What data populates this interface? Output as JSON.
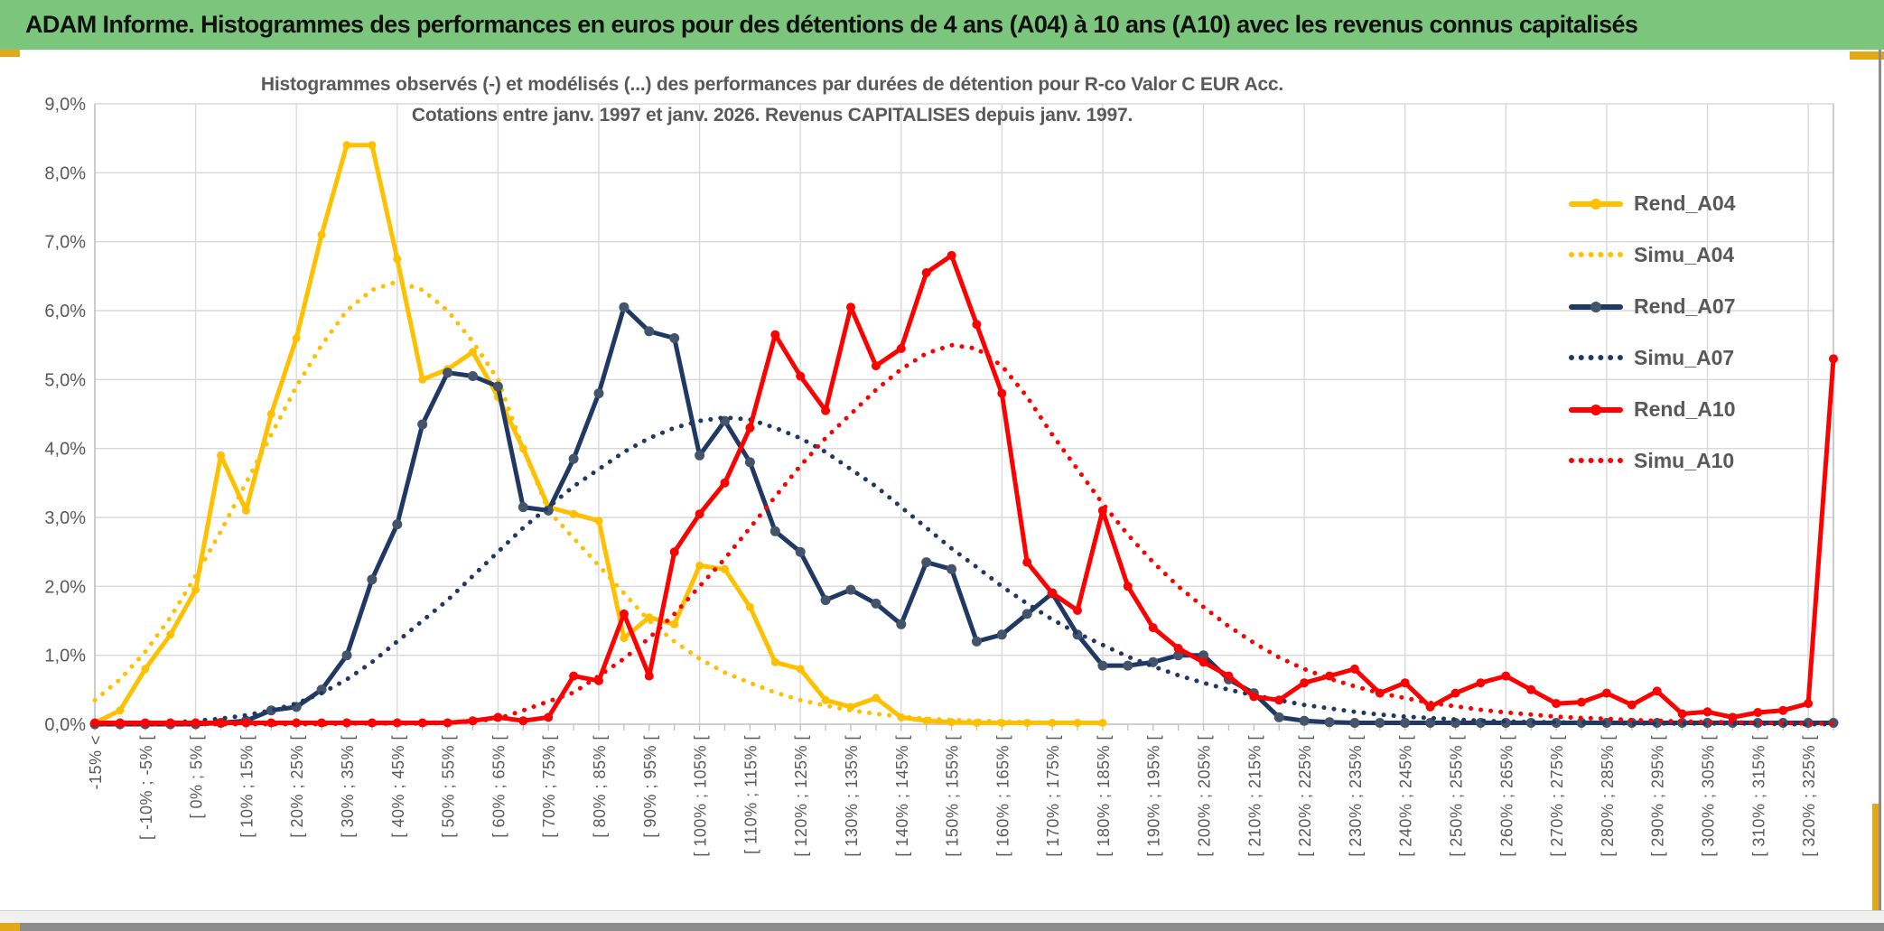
{
  "banner": {
    "title": "ADAM Informe. Histogrammes des performances en euros pour des détentions de 4 ans (A04) à 10 ans (A10) avec les revenus connus capitalisés"
  },
  "colors": {
    "banner_green": "#7CC57C",
    "gold": "#FFC000",
    "navy": "#1F3864",
    "navy_marker": "#44546A",
    "red": "#FF0000",
    "text_gray": "#595959",
    "gridline": "#D9D9D9",
    "axis_line": "#BFBFBF",
    "chrome_gold": "#E3A818",
    "chrome_gray": "#8C8C8C"
  },
  "chart_data": {
    "type": "line",
    "title": "Histogrammes observés (-) et modélisés (...) des performances par durées de détention pour R-co Valor C EUR Acc.",
    "subtitle": "Cotations entre janv. 1997 et janv. 2026. Revenus CAPITALISES depuis janv. 1997.",
    "xlabel": "",
    "ylabel": "",
    "ylim": [
      0,
      9
    ],
    "y_tick_step_pct": 1.0,
    "y_tick_labels": [
      "0,0%",
      "1,0%",
      "2,0%",
      "3,0%",
      "4,0%",
      "5,0%",
      "6,0%",
      "7,0%",
      "8,0%",
      "9,0%"
    ],
    "grid": {
      "horizontal": true,
      "vertical_every_n_bins": 4
    },
    "legend_position": "right-inside",
    "bin_width_pct": 5,
    "categories": [
      "-15% <",
      "",
      "[ -10% ; -5% [",
      "",
      "[ 0% ; 5% [",
      "",
      "[ 10% ; 15% [",
      "",
      "[ 20% ; 25% [",
      "",
      "[ 30% ; 35% [",
      "",
      "[ 40% ; 45% [",
      "",
      "[ 50% ; 55% [",
      "",
      "[ 60% ; 65% [",
      "",
      "[ 70% ; 75% [",
      "",
      "[ 80% ; 85% [",
      "",
      "[ 90% ; 95% [",
      "",
      "[ 100% ; 105% [",
      "",
      "[ 110% ; 115% [",
      "",
      "[ 120% ; 125% [",
      "",
      "[ 130% ; 135% [",
      "",
      "[ 140% ; 145% [",
      "",
      "[ 150% ; 155% [",
      "",
      "[ 160% ; 165% [",
      "",
      "[ 170% ; 175% [",
      "",
      "[ 180% ; 185% [",
      "",
      "[ 190% ; 195% [",
      "",
      "[ 200% ; 205% [",
      "",
      "[ 210% ; 215% [",
      "",
      "[ 220% ; 225% [",
      "",
      "[ 230% ; 235% [",
      "",
      "[ 240% ; 245% [",
      "",
      "[ 250% ; 255% [",
      "",
      "[ 260% ; 265% [",
      "",
      "[ 270% ; 275% [",
      "",
      "[ 280% ; 285% [",
      "",
      "[ 290% ; 295% [",
      "",
      "[ 300% ; 305% [",
      "",
      "[ 310% ; 315% [",
      "",
      "[ 320% ; 325% [",
      ""
    ],
    "series": [
      {
        "name": "Rend_A04",
        "style": "solid",
        "color": "#FFC000",
        "marker_color": "#FFC000",
        "marker_r": 4.5,
        "values": [
          0.02,
          0.2,
          0.8,
          1.3,
          1.95,
          3.9,
          3.1,
          4.5,
          5.6,
          7.1,
          8.4,
          8.4,
          6.75,
          5.0,
          5.15,
          5.4,
          4.75,
          4.0,
          3.15,
          3.05,
          2.95,
          1.25,
          1.55,
          1.45,
          2.3,
          2.25,
          1.7,
          0.9,
          0.8,
          0.35,
          0.25,
          0.38,
          0.1,
          0.05,
          0.03,
          0.02,
          0.02,
          0.02,
          0.02,
          0.02,
          0.02,
          null,
          null,
          null,
          null,
          null,
          null,
          null,
          null,
          null,
          null,
          null,
          null,
          null,
          null,
          null,
          null,
          null,
          null,
          null,
          null,
          null,
          null,
          null,
          null,
          null,
          null,
          null,
          null,
          null
        ]
      },
      {
        "name": "Simu_A04",
        "style": "dotted",
        "color": "#FFC000",
        "values": [
          0.35,
          0.65,
          1.05,
          1.55,
          2.15,
          2.8,
          3.5,
          4.2,
          4.9,
          5.5,
          6.0,
          6.3,
          6.42,
          6.3,
          6.0,
          5.55,
          5.0,
          4.0,
          3.1,
          2.7,
          2.3,
          1.9,
          1.5,
          1.2,
          0.95,
          0.75,
          0.6,
          0.46,
          0.35,
          0.27,
          0.2,
          0.15,
          0.11,
          0.08,
          0.06,
          0.05,
          0.04,
          0.03,
          0.02,
          0.02,
          0.01,
          null,
          null,
          null,
          null,
          null,
          null,
          null,
          null,
          null,
          null,
          null,
          null,
          null,
          null,
          null,
          null,
          null,
          null,
          null,
          null,
          null,
          null,
          null,
          null,
          null,
          null,
          null,
          null,
          null
        ]
      },
      {
        "name": "Rend_A07",
        "style": "solid",
        "color": "#1F3864",
        "marker_color": "#44546A",
        "marker_r": 5.5,
        "values": [
          0,
          0,
          0,
          0,
          0,
          0.02,
          0.05,
          0.2,
          0.25,
          0.5,
          1.0,
          2.1,
          2.9,
          4.35,
          5.1,
          5.05,
          4.9,
          3.15,
          3.1,
          3.85,
          4.8,
          6.05,
          5.7,
          5.6,
          3.9,
          4.4,
          3.8,
          2.8,
          2.5,
          1.8,
          1.95,
          1.75,
          1.45,
          2.35,
          2.25,
          1.2,
          1.3,
          1.6,
          1.9,
          1.3,
          0.85,
          0.85,
          0.9,
          1.0,
          1.0,
          0.65,
          0.45,
          0.1,
          0.05,
          0.03,
          0.02,
          0.02,
          0.02,
          0.02,
          0.02,
          0.02,
          0.02,
          0.02,
          0.02,
          0.02,
          0.02,
          0.02,
          0.02,
          0.02,
          0.02,
          0.02,
          0.02,
          0.02,
          0.02,
          0.02
        ]
      },
      {
        "name": "Simu_A07",
        "style": "dotted",
        "color": "#1F3864",
        "values": [
          0,
          0,
          0.01,
          0.02,
          0.05,
          0.08,
          0.13,
          0.2,
          0.3,
          0.45,
          0.65,
          0.9,
          1.2,
          1.5,
          1.8,
          2.15,
          2.5,
          2.85,
          3.15,
          3.45,
          3.7,
          3.95,
          4.15,
          4.3,
          4.4,
          4.45,
          4.42,
          4.3,
          4.15,
          3.95,
          3.7,
          3.45,
          3.15,
          2.85,
          2.55,
          2.28,
          2.0,
          1.75,
          1.52,
          1.32,
          1.15,
          0.98,
          0.84,
          0.71,
          0.6,
          0.5,
          0.42,
          0.35,
          0.28,
          0.23,
          0.18,
          0.14,
          0.11,
          0.09,
          0.07,
          0.05,
          0.04,
          0.03,
          0.03,
          0.02,
          0.02,
          0.01,
          0.01,
          0.01,
          0.01,
          0.01,
          0.01,
          0,
          0,
          0
        ]
      },
      {
        "name": "Rend_A10",
        "style": "solid",
        "color": "#FF0000",
        "marker_color": "#FF0000",
        "marker_r": 5,
        "values": [
          0.02,
          0.02,
          0.02,
          0.02,
          0.02,
          0.02,
          0.02,
          0.02,
          0.02,
          0.02,
          0.02,
          0.02,
          0.02,
          0.02,
          0.02,
          0.05,
          0.1,
          0.05,
          0.1,
          0.7,
          0.63,
          1.6,
          0.7,
          2.5,
          3.05,
          3.5,
          4.3,
          5.65,
          5.05,
          4.55,
          6.05,
          5.2,
          5.45,
          6.55,
          6.8,
          5.8,
          4.8,
          2.35,
          1.9,
          1.65,
          3.1,
          2.0,
          1.4,
          1.1,
          0.9,
          0.7,
          0.4,
          0.35,
          0.6,
          0.7,
          0.8,
          0.45,
          0.6,
          0.25,
          0.45,
          0.6,
          0.7,
          0.5,
          0.3,
          0.32,
          0.45,
          0.28,
          0.48,
          0.15,
          0.18,
          0.1,
          0.17,
          0.2,
          0.3,
          5.3
        ]
      },
      {
        "name": "Simu_A10",
        "style": "dotted",
        "color": "#FF0000",
        "values": [
          0,
          0,
          0,
          0,
          0,
          0,
          0,
          0,
          0,
          0,
          0.01,
          0.01,
          0.01,
          0.01,
          0.02,
          0.04,
          0.08,
          0.2,
          0.33,
          0.46,
          0.7,
          0.95,
          1.25,
          1.6,
          2.0,
          2.4,
          2.85,
          3.3,
          3.75,
          4.15,
          4.5,
          4.85,
          5.15,
          5.38,
          5.5,
          5.45,
          5.2,
          4.75,
          4.2,
          3.7,
          3.2,
          2.75,
          2.35,
          2.0,
          1.7,
          1.42,
          1.18,
          0.97,
          0.8,
          0.66,
          0.55,
          0.45,
          0.38,
          0.31,
          0.26,
          0.21,
          0.17,
          0.14,
          0.11,
          0.09,
          0.08,
          0.06,
          0.05,
          0.04,
          0.03,
          0.03,
          0.02,
          0.02,
          0.01,
          0.01
        ]
      }
    ]
  }
}
